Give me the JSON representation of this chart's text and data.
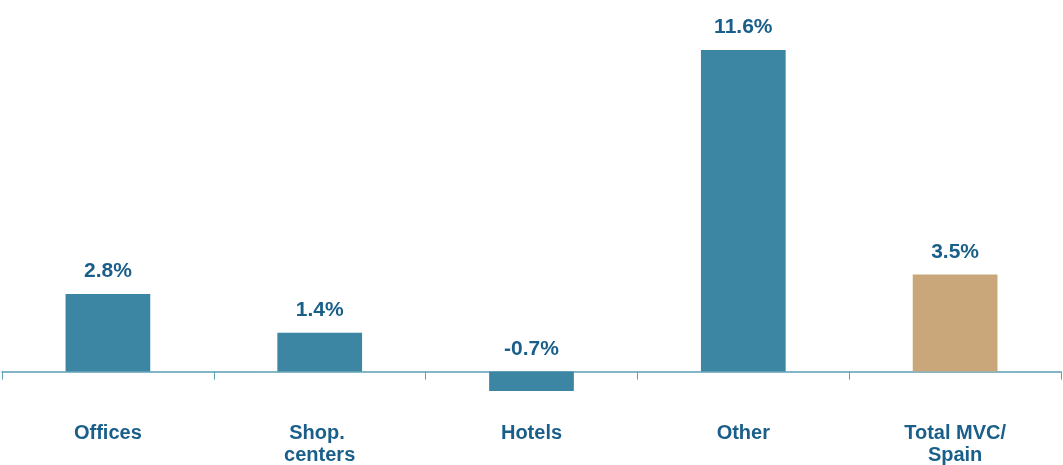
{
  "chart_data": {
    "type": "bar",
    "categories": [
      "Offices",
      "Shop. centers",
      "Hotels",
      "Other",
      "Total MVC/Spain"
    ],
    "values": [
      2.8,
      1.4,
      -0.7,
      11.6,
      3.5
    ],
    "colors": [
      "#3d86a3",
      "#3d86a3",
      "#3d86a3",
      "#3d86a3",
      "#c9a77a"
    ],
    "value_labels": [
      "2.8%",
      "1.4%",
      "-0.7%",
      "11.6%",
      "3.5%"
    ]
  }
}
